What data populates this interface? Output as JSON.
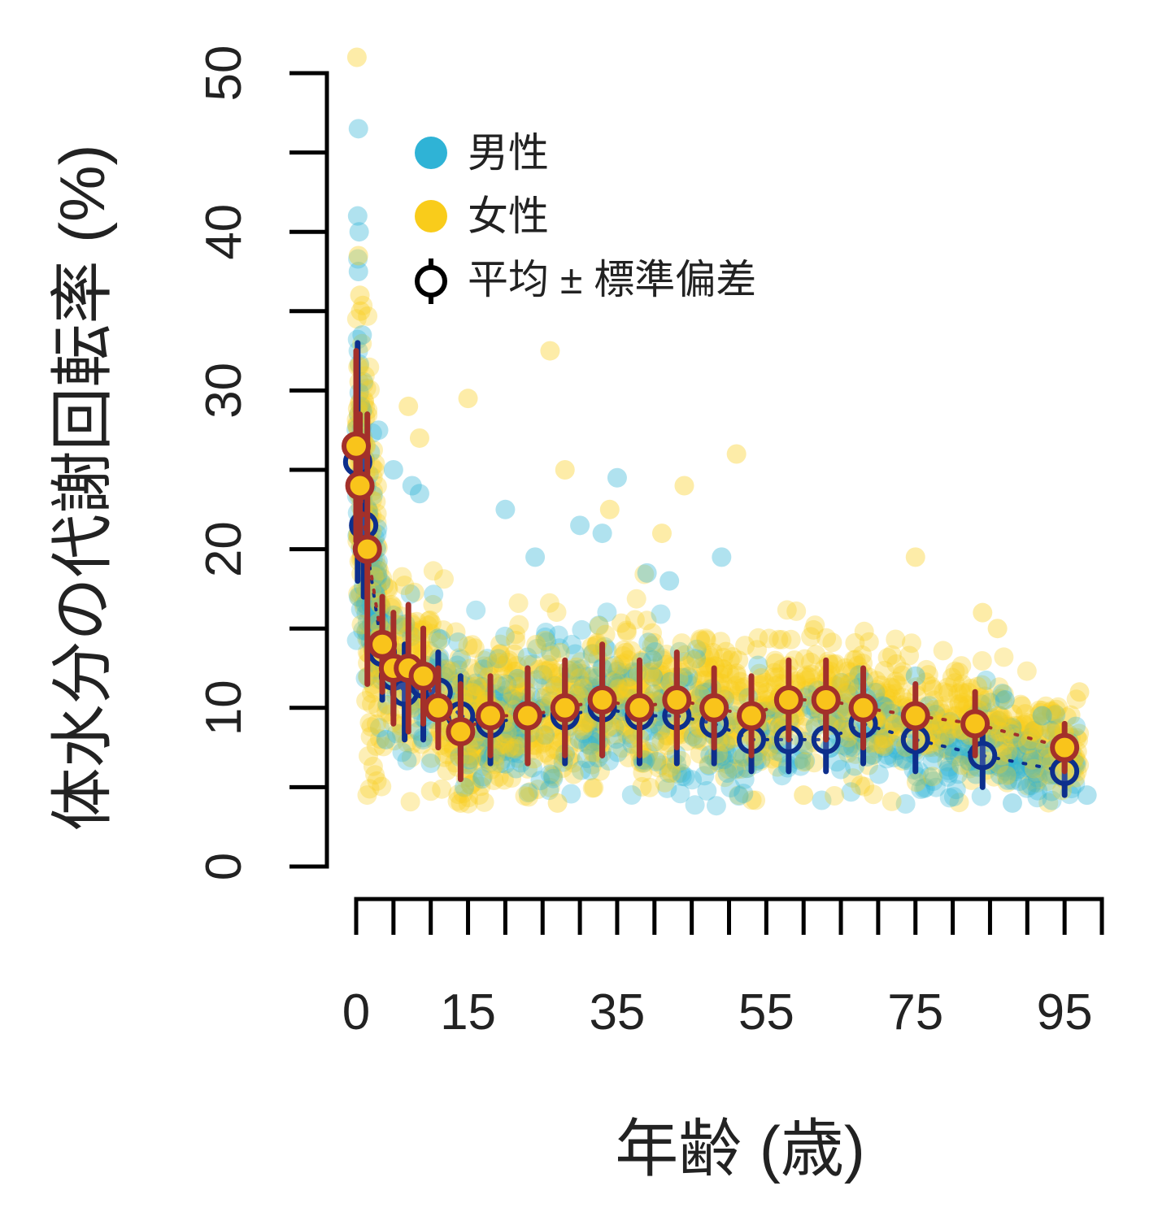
{
  "chart_data": {
    "type": "scatter",
    "title": "",
    "xlabel": "年齢 (歳)",
    "ylabel": "体水分の代謝回転率 (%)",
    "xlim": [
      0,
      100
    ],
    "ylim": [
      0,
      50
    ],
    "yticks": [
      0,
      5,
      10,
      15,
      20,
      25,
      30,
      35,
      40,
      45,
      50
    ],
    "ytick_labels": [
      "0",
      "10",
      "20",
      "30",
      "40",
      "50"
    ],
    "xticks": [
      0,
      5,
      10,
      15,
      20,
      25,
      30,
      35,
      40,
      45,
      50,
      55,
      60,
      65,
      70,
      75,
      80,
      85,
      90,
      95,
      100
    ],
    "xtick_labels": [
      "0",
      "15",
      "35",
      "55",
      "75",
      "95"
    ],
    "grid": false,
    "legend_position": "top-left",
    "legend": {
      "male": "男性",
      "female": "女性",
      "mean_sd": "平均 ± 標準偏差"
    },
    "colors": {
      "male_point": "#2fb3d6",
      "female_point": "#f9cc1b",
      "male_mean_edge": "#0d2f8c",
      "female_mean_edge": "#a3302a",
      "female_mean_fill": "#f9c41b"
    },
    "series": [
      {
        "name": "男性",
        "kind": "mean_sd",
        "points": [
          {
            "x": 0.2,
            "mean": 25.5,
            "sd": 7.5
          },
          {
            "x": 1.0,
            "mean": 21.5,
            "sd": 4.5
          },
          {
            "x": 3.5,
            "mean": 13.5,
            "sd": 3.0
          },
          {
            "x": 5.0,
            "mean": 12.0,
            "sd": 2.5
          },
          {
            "x": 6.5,
            "mean": 11.0,
            "sd": 3.0
          },
          {
            "x": 9.0,
            "mean": 11.5,
            "sd": 3.5
          },
          {
            "x": 11.0,
            "mean": 11.0,
            "sd": 2.5
          },
          {
            "x": 14.0,
            "mean": 9.5,
            "sd": 2.5
          },
          {
            "x": 18.0,
            "mean": 9.0,
            "sd": 2.5
          },
          {
            "x": 23.0,
            "mean": 9.5,
            "sd": 3.0
          },
          {
            "x": 28.0,
            "mean": 9.5,
            "sd": 3.0
          },
          {
            "x": 33.0,
            "mean": 10.0,
            "sd": 3.0
          },
          {
            "x": 38.0,
            "mean": 9.5,
            "sd": 3.0
          },
          {
            "x": 43.0,
            "mean": 9.5,
            "sd": 3.0
          },
          {
            "x": 48.0,
            "mean": 9.0,
            "sd": 2.5
          },
          {
            "x": 53.0,
            "mean": 8.0,
            "sd": 2.0
          },
          {
            "x": 58.0,
            "mean": 8.0,
            "sd": 2.0
          },
          {
            "x": 63.0,
            "mean": 8.0,
            "sd": 2.0
          },
          {
            "x": 68.0,
            "mean": 9.0,
            "sd": 2.5
          },
          {
            "x": 75.0,
            "mean": 8.0,
            "sd": 2.0
          },
          {
            "x": 84.0,
            "mean": 7.0,
            "sd": 2.0
          },
          {
            "x": 95.0,
            "mean": 6.0,
            "sd": 1.5
          }
        ]
      },
      {
        "name": "女性",
        "kind": "mean_sd",
        "points": [
          {
            "x": 0.0,
            "mean": 26.5,
            "sd": 6.0
          },
          {
            "x": 0.5,
            "mean": 24.0,
            "sd": 4.5
          },
          {
            "x": 1.5,
            "mean": 20.0,
            "sd": 8.5
          },
          {
            "x": 3.5,
            "mean": 14.0,
            "sd": 3.0
          },
          {
            "x": 5.0,
            "mean": 12.5,
            "sd": 3.5
          },
          {
            "x": 7.0,
            "mean": 12.5,
            "sd": 4.0
          },
          {
            "x": 9.0,
            "mean": 12.0,
            "sd": 3.0
          },
          {
            "x": 11.0,
            "mean": 10.0,
            "sd": 2.5
          },
          {
            "x": 14.0,
            "mean": 8.5,
            "sd": 3.0
          },
          {
            "x": 18.0,
            "mean": 9.5,
            "sd": 2.5
          },
          {
            "x": 23.0,
            "mean": 9.5,
            "sd": 3.0
          },
          {
            "x": 28.0,
            "mean": 10.0,
            "sd": 3.0
          },
          {
            "x": 33.0,
            "mean": 10.5,
            "sd": 3.5
          },
          {
            "x": 38.0,
            "mean": 10.0,
            "sd": 3.0
          },
          {
            "x": 43.0,
            "mean": 10.5,
            "sd": 3.0
          },
          {
            "x": 48.0,
            "mean": 10.0,
            "sd": 2.5
          },
          {
            "x": 53.0,
            "mean": 9.5,
            "sd": 2.5
          },
          {
            "x": 58.0,
            "mean": 10.5,
            "sd": 2.5
          },
          {
            "x": 63.0,
            "mean": 10.5,
            "sd": 2.5
          },
          {
            "x": 68.0,
            "mean": 10.0,
            "sd": 2.5
          },
          {
            "x": 75.0,
            "mean": 9.5,
            "sd": 2.0
          },
          {
            "x": 83.0,
            "mean": 9.0,
            "sd": 2.0
          },
          {
            "x": 95.0,
            "mean": 7.5,
            "sd": 1.5
          }
        ]
      }
    ],
    "outliers": {
      "男性": [
        {
          "x": 0.3,
          "y": 46.5
        },
        {
          "x": 0.2,
          "y": 41.0
        },
        {
          "x": 0.4,
          "y": 40.0
        },
        {
          "x": 0.3,
          "y": 37.5
        },
        {
          "x": 0.8,
          "y": 33.5
        },
        {
          "x": 3.0,
          "y": 27.5
        },
        {
          "x": 5.0,
          "y": 25.0
        },
        {
          "x": 7.5,
          "y": 24.0
        },
        {
          "x": 8.5,
          "y": 23.5
        },
        {
          "x": 20.0,
          "y": 22.5
        },
        {
          "x": 35.0,
          "y": 24.5
        },
        {
          "x": 24.0,
          "y": 19.5
        },
        {
          "x": 30.0,
          "y": 21.5
        },
        {
          "x": 33.0,
          "y": 21.0
        },
        {
          "x": 49.0,
          "y": 19.5
        },
        {
          "x": 39.0,
          "y": 18.5
        },
        {
          "x": 42.0,
          "y": 18.0
        },
        {
          "x": 75.0,
          "y": 12.0
        },
        {
          "x": 87.0,
          "y": 10.5
        },
        {
          "x": 92.0,
          "y": 9.5
        },
        {
          "x": 98.0,
          "y": 4.5
        },
        {
          "x": 88.0,
          "y": 4.0
        },
        {
          "x": 4.0,
          "y": 8.0
        }
      ],
      "女性": [
        {
          "x": 0.1,
          "y": 51.0
        },
        {
          "x": 0.3,
          "y": 38.5
        },
        {
          "x": 0.5,
          "y": 36.0
        },
        {
          "x": 0.6,
          "y": 35.0
        },
        {
          "x": 26.0,
          "y": 32.5
        },
        {
          "x": 15.0,
          "y": 29.5
        },
        {
          "x": 7.0,
          "y": 29.0
        },
        {
          "x": 8.5,
          "y": 27.0
        },
        {
          "x": 51.0,
          "y": 26.0
        },
        {
          "x": 28.0,
          "y": 25.0
        },
        {
          "x": 44.0,
          "y": 24.0
        },
        {
          "x": 34.0,
          "y": 22.5
        },
        {
          "x": 41.0,
          "y": 21.0
        },
        {
          "x": 75.0,
          "y": 19.5
        },
        {
          "x": 84.0,
          "y": 16.0
        },
        {
          "x": 86.0,
          "y": 15.0
        },
        {
          "x": 97.0,
          "y": 11.0
        },
        {
          "x": 14.0,
          "y": 4.0
        },
        {
          "x": 27.0,
          "y": 4.0
        },
        {
          "x": 60.0,
          "y": 4.5
        }
      ]
    }
  }
}
